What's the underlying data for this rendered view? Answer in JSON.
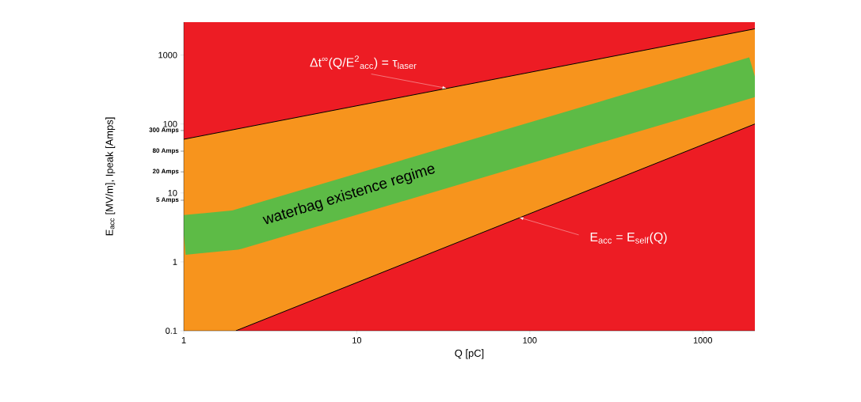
{
  "chart_data": {
    "type": "line",
    "log": "xy",
    "xlabel": "Q [pC]",
    "ylabel": "E$_{acc}$ [MV/m], Ipeak [Amps]",
    "xlim": [
      1,
      2000
    ],
    "ylim": [
      0.1,
      3000
    ],
    "xticks": [
      1,
      10,
      100,
      1000
    ],
    "yticks": [
      0.1,
      1,
      10,
      100,
      1000
    ],
    "bands": [
      {
        "axis": "y",
        "from": 0.1,
        "to": 3000,
        "color": "#ed1c24"
      }
    ],
    "series": [
      {
        "color": "#5dbb46",
        "x": [
          1,
          2,
          2000
        ],
        "values": [
          2.45,
          2.9,
          490
        ],
        "lower": [
          0.1,
          0.1,
          100
        ],
        "upper": [
          60,
          84,
          2400
        ]
      },
      {
        "color": "#000000",
        "x": [
          1,
          2000
        ],
        "values": [
          60,
          2400
        ]
      },
      {
        "color": "#000000",
        "x": [
          2,
          2000
        ],
        "values": [
          0.1,
          100
        ]
      }
    ],
    "annotations": [
      {
        "text": "Δt$^{∞}$(Q/E$^{2}$$_{acc}$) = τ$_{laser}$",
        "x": 33,
        "y": 330
      },
      {
        "text": "E$_{acc}$ = E$_{self}$(Q)",
        "x": 87,
        "y": 4.4
      },
      "300 Amps",
      "80 Amps",
      "20 Amps",
      "5 Amps",
      "waterbag existence regime"
    ]
  }
}
